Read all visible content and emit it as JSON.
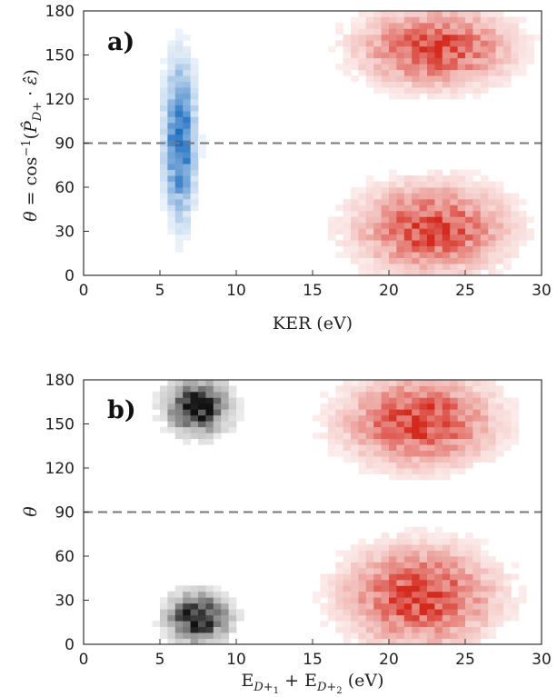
{
  "chart_data": [
    {
      "type": "heatmap",
      "panel_label": "a)",
      "xlabel": "KER (eV)",
      "ylabel": "θ = cos⁻¹(P̂D+ · ε̂)",
      "xlim": [
        0,
        30
      ],
      "ylim": [
        0,
        180
      ],
      "xticks": [
        "0",
        "5",
        "10",
        "15",
        "20",
        "25",
        "30"
      ],
      "yticks": [
        "0",
        "30",
        "60",
        "90",
        "120",
        "150",
        "180"
      ],
      "reference_line": {
        "y": 90,
        "style": "dashed",
        "color": "#777777"
      },
      "grid": false,
      "series": [
        {
          "color": "#1f6fc0",
          "clusters": [
            {
              "x_center": 6.3,
              "x_sd": 0.55,
              "y_center": 92,
              "y_sd": 28,
              "peak_intensity": 1.0
            }
          ]
        },
        {
          "color": "#d42a1e",
          "clusters": [
            {
              "x_center": 23.0,
              "x_sd": 2.6,
              "y_center": 155,
              "y_sd": 14,
              "peak_intensity": 0.85
            },
            {
              "x_center": 22.8,
              "x_sd": 2.6,
              "y_center": 32,
              "y_sd": 16,
              "peak_intensity": 0.85
            }
          ]
        }
      ]
    },
    {
      "type": "heatmap",
      "panel_label": "b)",
      "xlabel": "ED+1 + ED+2 (eV)",
      "ylabel": "θ",
      "xlim": [
        0,
        30
      ],
      "ylim": [
        0,
        180
      ],
      "xticks": [
        "0",
        "5",
        "10",
        "15",
        "20",
        "25",
        "30"
      ],
      "yticks": [
        "0",
        "30",
        "60",
        "90",
        "120",
        "150",
        "180"
      ],
      "reference_line": {
        "y": 90,
        "style": "dashed",
        "color": "#777777"
      },
      "grid": false,
      "series": [
        {
          "color": "#111111",
          "clusters": [
            {
              "x_center": 7.5,
              "x_sd": 1.1,
              "y_center": 162,
              "y_sd": 10,
              "peak_intensity": 1.0
            },
            {
              "x_center": 7.5,
              "x_sd": 1.1,
              "y_center": 18,
              "y_sd": 9,
              "peak_intensity": 1.0
            }
          ]
        },
        {
          "color": "#d42a1e",
          "clusters": [
            {
              "x_center": 22.0,
              "x_sd": 2.6,
              "y_center": 152,
              "y_sd": 16,
              "peak_intensity": 0.9
            },
            {
              "x_center": 22.0,
              "x_sd": 2.6,
              "y_center": 33,
              "y_sd": 18,
              "peak_intensity": 0.9
            }
          ]
        }
      ]
    }
  ]
}
